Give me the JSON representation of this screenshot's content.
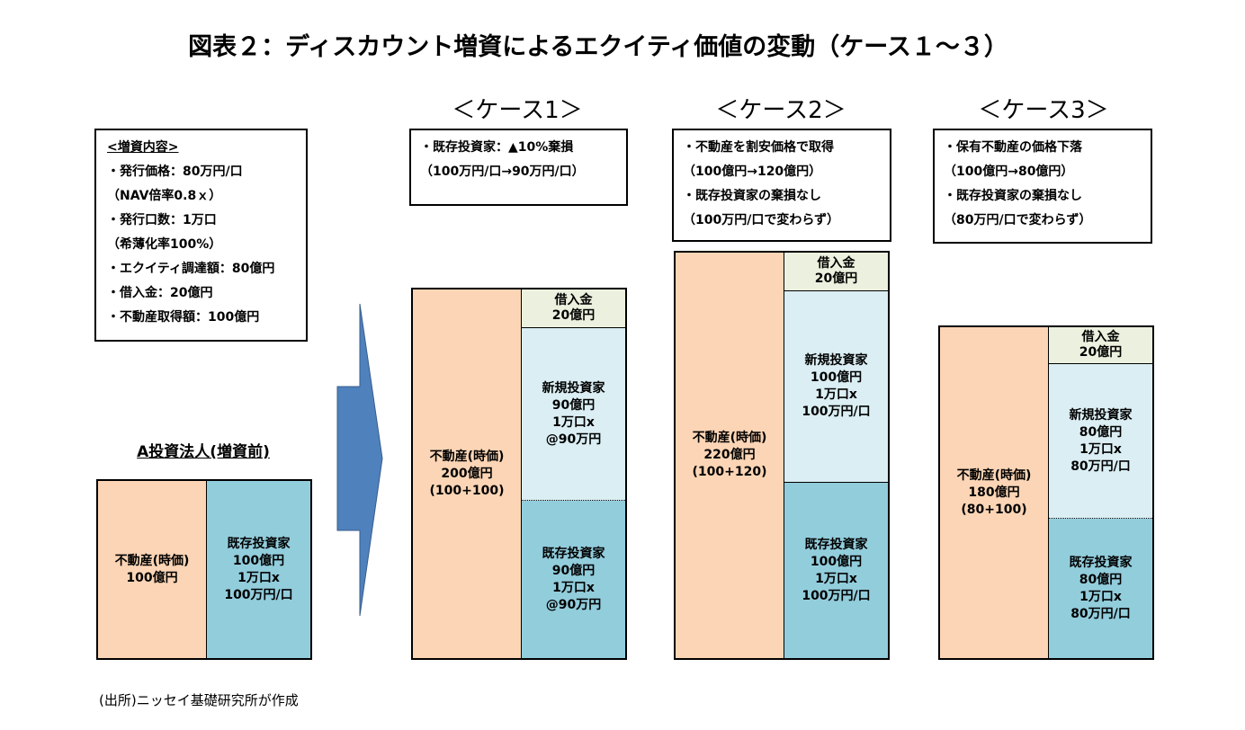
{
  "title": "図表２：ディスカウント増資によるエクイティ価値の変動（ケース１～３）",
  "conditions": {
    "heading": "<増資内容>",
    "lines": [
      "・発行価格：80万円/口",
      "（NAV倍率0.8ｘ）",
      "・発行口数：1万口",
      "（希薄化率100%）",
      "・エクイティ調達額：80億円",
      "・借入金：20億円",
      "・不動産取得額：100億円"
    ]
  },
  "before": {
    "label": "A投資法人(増資前)",
    "asset": [
      "不動産(時価)",
      "100億円"
    ],
    "existing": [
      "既存投資家",
      "100億円",
      "1万口x",
      "100万円/口"
    ]
  },
  "cases": [
    {
      "heading": "＜ケース1＞",
      "notes": [
        "・既存投資家：▲10%棄損",
        "（100万円/口→90万円/口）"
      ],
      "asset": [
        "不動産(時価)",
        "200億円",
        "(100+100)"
      ],
      "loan": [
        "借入金",
        "20億円"
      ],
      "new": [
        "新規投資家",
        "90億円",
        "1万口x",
        "@90万円"
      ],
      "existing": [
        "既存投資家",
        "90億円",
        "1万口x",
        "@90万円"
      ]
    },
    {
      "heading": "＜ケース2＞",
      "notes": [
        "・不動産を割安価格で取得",
        "（100億円→120億円）",
        "・既存投資家の棄損なし",
        "（100万円/口で変わらず）"
      ],
      "asset": [
        "不動産(時価)",
        "220億円",
        "(100+120)"
      ],
      "loan": [
        "借入金",
        "20億円"
      ],
      "new": [
        "新規投資家",
        "100億円",
        "1万口x",
        "100万円/口"
      ],
      "existing": [
        "既存投資家",
        "100億円",
        "1万口x",
        "100万円/口"
      ]
    },
    {
      "heading": "＜ケース3＞",
      "notes": [
        "・保有不動産の価格下落",
        "（100億円→80億円）",
        "・既存投資家の棄損なし",
        "（80万円/口で変わらず）"
      ],
      "asset": [
        "不動産(時価)",
        "180億円",
        "(80+100)"
      ],
      "loan": [
        "借入金",
        "20億円"
      ],
      "new": [
        "新規投資家",
        "80億円",
        "1万口x",
        "80万円/口"
      ],
      "existing": [
        "既存投資家",
        "80億円",
        "1万口x",
        "80万円/口"
      ]
    }
  ],
  "source": "(出所)ニッセイ基礎研究所が作成"
}
